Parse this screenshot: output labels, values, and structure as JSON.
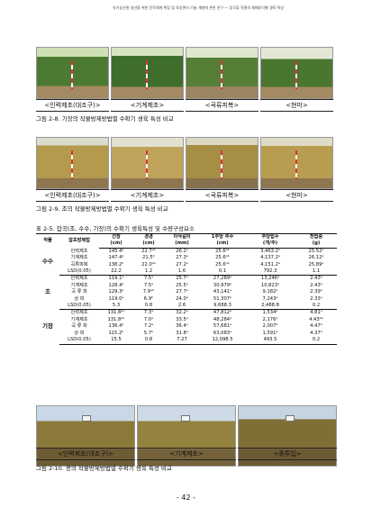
{
  "header": "유기농산물 생산을 위한 윤작체계 확립 및 토양관리 기술 개발에 관한 연구 — 잡곡류 작물의 재배양식별 생육 특성",
  "fig1": {
    "captions": [
      "<인력제초(대조구)>",
      "<기계제초>",
      "<곡류피복>",
      "<현미>"
    ],
    "title": "그림 2-8. 기장의 작물방제방법별 수확기 생육 특성 비교"
  },
  "fig2": {
    "captions": [
      "<인력제초(대조구)>",
      "<기계제초>",
      "<곡류피복>",
      "<현미>"
    ],
    "title": "그림 2-9. 조의 작물방제방법별 수확기 생육 특성 비교"
  },
  "table": {
    "title": "표 2-5. 잡곡(조, 수수, 기장)의 수확기 생육특성 및 수량구성요소",
    "headers1": [
      "작물",
      "잡초방제법",
      "간장",
      "경경",
      "이삭길이",
      "1주당 주수",
      "주당립수",
      "천립중"
    ],
    "headers2": [
      "(cm)",
      "(cm)",
      "(mm)",
      "(cm)",
      "(개/주)",
      "(g)"
    ],
    "groups": [
      {
        "crop": "수수",
        "rows": [
          [
            "인력제초",
            "145.4ᵃ",
            "22.7ᵃᵇ",
            "26.2ᵃ",
            "25.6ᵃᵇ",
            "3,463.2ᵃ",
            "25.52ᵃ"
          ],
          [
            "기계제초",
            "147.4ᵃ",
            "21.5ᵇ",
            "27.3ᵃ",
            "25.6ᵃᵇ",
            "4,137.2ᵃ",
            "26.12ᵃ"
          ],
          [
            "곡류피복",
            "138.2ᵇ",
            "22.0ᵃᵇ",
            "27.2ᵃ",
            "25.6ᵃᵇ",
            "4,151.2ᵃ",
            "25.89ᵃ"
          ],
          [
            "LSD(0.05)",
            "22.2",
            "1.2",
            "1.6",
            "0.1",
            "792.3",
            "1.1"
          ]
        ]
      },
      {
        "crop": "조",
        "rows": [
          [
            "인력제초",
            "119.1ᵃ",
            "7.5ᵃ",
            "25.7ᵃ",
            "27,289ᵃ",
            "13,246ᵃ",
            "2.43ᵃ"
          ],
          [
            "기계제초",
            "128.4ᵃ",
            "7.5ᵃ",
            "25.5ᵃ",
            "30,979ᵃ",
            "10,823ᵃ",
            "2.43ᵃ"
          ],
          [
            "곡 류 피",
            "129.3ᵃ",
            "7.9ᵃᵇ",
            "27.7ᵃ",
            "43,141ᵃ",
            "9,182ᵃ",
            "2.39ᵃ"
          ],
          [
            "상 피",
            "119.0ᵃ",
            "6.9ᵇ",
            "24.0ᵃ",
            "51,307ᵃ",
            "7,243ᵃ",
            "2.33ᵃ"
          ],
          [
            "LSD(0.05)",
            "5.3",
            "0.8",
            "2.6",
            "9,688.3",
            "2,488.8",
            "0.2"
          ]
        ]
      },
      {
        "crop": "기장",
        "rows": [
          [
            "인력제초",
            "131.8ᵃᵇ",
            "7.3ᵃ",
            "32.2ᵃ",
            "47,812ᵃ",
            "1,534ᵃ",
            "4.81ᵃ"
          ],
          [
            "기계제초",
            "131.8ᵃᵇ",
            "7.0ᵃ",
            "33.5ᵃ",
            "48,284ᵃ",
            "2,176ᵃ",
            "4.43ᵃᵇ"
          ],
          [
            "곡 류 피",
            "136.4ᵃ",
            "7.2ᵃ",
            "36.4ᵃ",
            "57,681ᵃ",
            "2,007ᵃ",
            "4.47ᵃ"
          ],
          [
            "상 피",
            "115.2ᵇ",
            "5.7ᵇ",
            "31.8ᵃ",
            "63,083ᵃ",
            "1,591ᵃ",
            "4.37ᵃ"
          ],
          [
            "LSD(0.05)",
            "15.5",
            "0.8",
            "7.27",
            "12,098.5",
            "493.5",
            "0.2"
          ]
        ]
      }
    ]
  },
  "fig3": {
    "captions": [
      "<인력제초(대조구)>",
      "<기계제초>",
      "<흙투입>"
    ],
    "title": "그림 2-10. 콩의 작물방제방법별 수확기 생육 특성 비교"
  },
  "page_number": "- 42 -",
  "colors": {
    "sorghum_canopy": "#3f6e2c",
    "millet_canopy": "#b39a4c",
    "soybean_canopy": "#8c7a3a",
    "sky": "#c9d7e6",
    "soil": "#a48a62"
  }
}
